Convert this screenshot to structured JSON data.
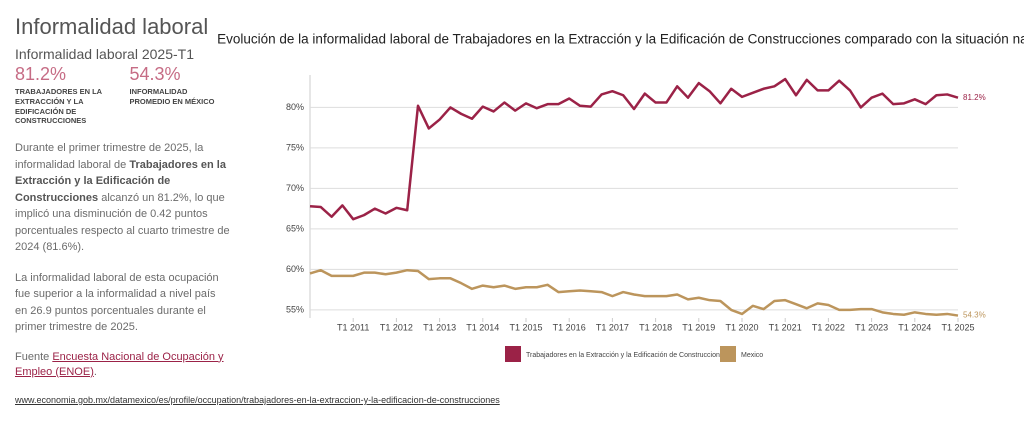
{
  "sidebar": {
    "title": "Informalidad laboral",
    "subtitle": "Informalidad laboral 2025-T1",
    "stats": [
      {
        "value": "81.2%",
        "label": "TRABAJADORES EN LA EXTRACCIÓN Y LA EDIFICACIÓN DE CONSTRUCCIONES"
      },
      {
        "value": "54.3%",
        "label": "INFORMALIDAD PROMEDIO EN MÉXICO"
      }
    ],
    "paragraphs": [
      [
        {
          "text": "Durante el primer trimestre de 2025, la informalidad laboral de ",
          "bold": false
        },
        {
          "text": "Trabajadores en la Extracción y la Edificación de Construcciones",
          "bold": true
        },
        {
          "text": " alcanzó un 81.2%, lo que implicó una disminución de 0.42 puntos porcentuales respecto al cuarto trimestre de 2024  (81.6%).",
          "bold": false
        }
      ],
      [
        {
          "text": "La informalidad laboral de esta ocupación fue superior a la informalidad a nivel país en 26.9 puntos porcentuales durante el primer trimestre de 2025.",
          "bold": false
        }
      ]
    ],
    "source_prefix": "Fuente",
    "source_link": "Encuesta Nacional de Ocupación y Empleo (ENOE)",
    "source_suffix": "."
  },
  "footer_url": "www.economia.gob.mx/datamexico/es/profile/occupation/trabajadores-en-la-extraccion-y-la-edificacion-de-construcciones",
  "chart_data": {
    "type": "line",
    "title": "Evolución de la informalidad laboral de Trabajadores en la Extracción y la Edificación de Construcciones comparado con la situación nacional",
    "x": [
      2010,
      2010.25,
      2010.5,
      2010.75,
      2011,
      2011.25,
      2011.5,
      2011.75,
      2012,
      2012.25,
      2012.5,
      2012.75,
      2013,
      2013.25,
      2013.5,
      2013.75,
      2014,
      2014.25,
      2014.5,
      2014.75,
      2015,
      2015.25,
      2015.5,
      2015.75,
      2016,
      2016.25,
      2016.5,
      2016.75,
      2017,
      2017.25,
      2017.5,
      2017.75,
      2018,
      2018.25,
      2018.5,
      2018.75,
      2019,
      2019.25,
      2019.5,
      2019.75,
      2020,
      2020.25,
      2020.5,
      2020.75,
      2021,
      2021.25,
      2021.5,
      2021.75,
      2022,
      2022.25,
      2022.5,
      2022.75,
      2023,
      2023.25,
      2023.5,
      2023.75,
      2024,
      2024.25,
      2024.5,
      2024.75,
      2025
    ],
    "series": [
      {
        "name": "Trabajadores en la Extracción y la Edificación de Construcciones",
        "color": "#9b2247",
        "end_label": "81.2%",
        "values": [
          67.8,
          67.7,
          66.5,
          67.9,
          66.2,
          66.7,
          67.5,
          66.9,
          67.6,
          67.3,
          80.2,
          77.4,
          78.5,
          80.0,
          79.2,
          78.6,
          80.1,
          79.5,
          80.6,
          79.6,
          80.5,
          79.9,
          80.4,
          80.4,
          81.1,
          80.2,
          80.1,
          81.6,
          82.0,
          81.5,
          79.8,
          81.7,
          80.6,
          80.6,
          82.6,
          81.2,
          83.0,
          82.0,
          80.5,
          82.3,
          81.3,
          81.8,
          82.3,
          82.6,
          83.5,
          81.5,
          83.4,
          82.1,
          82.1,
          83.3,
          82.1,
          80.0,
          81.2,
          81.7,
          80.4,
          80.5,
          81.0,
          80.4,
          81.5,
          81.6,
          81.2
        ]
      },
      {
        "name": "Mexico",
        "color": "#bc955c",
        "end_label": "54.3%",
        "values": [
          59.5,
          59.9,
          59.2,
          59.2,
          59.2,
          59.6,
          59.6,
          59.4,
          59.6,
          59.9,
          59.8,
          58.8,
          58.9,
          58.9,
          58.3,
          57.6,
          58.0,
          57.8,
          58.0,
          57.6,
          57.8,
          57.8,
          58.1,
          57.2,
          57.3,
          57.4,
          57.3,
          57.2,
          56.7,
          57.2,
          56.9,
          56.7,
          56.7,
          56.7,
          56.9,
          56.3,
          56.5,
          56.2,
          56.1,
          55.0,
          54.5,
          55.5,
          55.1,
          56.1,
          56.2,
          55.7,
          55.2,
          55.8,
          55.6,
          55.0,
          55.0,
          55.1,
          55.1,
          54.7,
          54.5,
          54.4,
          54.7,
          54.5,
          54.4,
          54.5,
          54.3
        ]
      }
    ],
    "xlim": [
      2010,
      2025
    ],
    "xticks": [
      {
        "value": 2011,
        "label": "T1 2011"
      },
      {
        "value": 2012,
        "label": "T1 2012"
      },
      {
        "value": 2013,
        "label": "T1 2013"
      },
      {
        "value": 2014,
        "label": "T1 2014"
      },
      {
        "value": 2015,
        "label": "T1 2015"
      },
      {
        "value": 2016,
        "label": "T1 2016"
      },
      {
        "value": 2017,
        "label": "T1 2017"
      },
      {
        "value": 2018,
        "label": "T1 2018"
      },
      {
        "value": 2019,
        "label": "T1 2019"
      },
      {
        "value": 2020,
        "label": "T1 2020"
      },
      {
        "value": 2021,
        "label": "T1 2021"
      },
      {
        "value": 2022,
        "label": "T1 2022"
      },
      {
        "value": 2023,
        "label": "T1 2023"
      },
      {
        "value": 2024,
        "label": "T1 2024"
      },
      {
        "value": 2025,
        "label": "T1 2025"
      }
    ],
    "ylim": [
      54,
      84
    ],
    "yticks": [
      {
        "value": 55,
        "label": "55%"
      },
      {
        "value": 60,
        "label": "60%"
      },
      {
        "value": 65,
        "label": "65%"
      },
      {
        "value": 70,
        "label": "70%"
      },
      {
        "value": 75,
        "label": "75%"
      },
      {
        "value": 80,
        "label": "80%"
      }
    ],
    "grid": true
  }
}
